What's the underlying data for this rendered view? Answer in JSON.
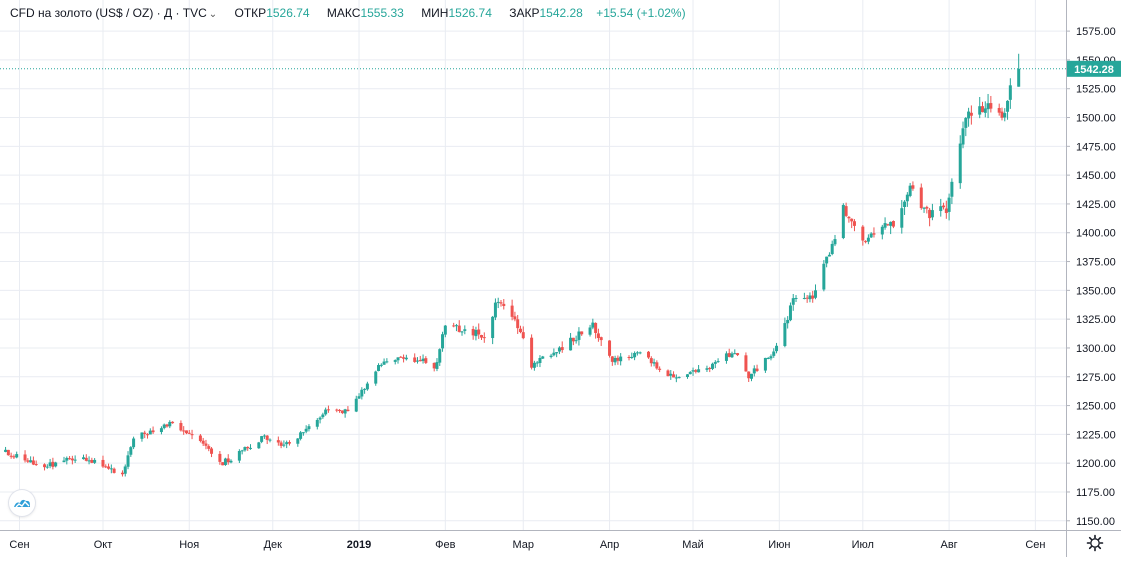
{
  "header": {
    "symbol": "CFD на золото (US$ / OZ) · Д · TVC",
    "open_label": "ОТКР",
    "open": "1526.74",
    "high_label": "МАКС",
    "high": "1555.33",
    "low_label": "МИН",
    "low": "1526.74",
    "close_label": "ЗАКР",
    "close": "1542.28",
    "change": "+15.54 (+1.02%)"
  },
  "colors": {
    "up": "#26a69a",
    "down": "#ef5350",
    "grid": "#e9ecf2",
    "axis": "#b2b5be",
    "last_price": "#26a69a",
    "text": "#131722"
  },
  "chart_data": {
    "type": "candlestick",
    "title": "",
    "xlabel": "",
    "ylabel": "",
    "ylim": [
      1142,
      1602
    ],
    "y_ticks": [
      1150,
      1175,
      1200,
      1225,
      1250,
      1275,
      1300,
      1325,
      1350,
      1375,
      1400,
      1425,
      1450,
      1475,
      1500,
      1525,
      1550,
      1575
    ],
    "y_tick_labels": [
      "1150.00",
      "1175.00",
      "1200.00",
      "1225.00",
      "1250.00",
      "1275.00",
      "1300.00",
      "1325.00",
      "1350.00",
      "1375.00",
      "1400.00",
      "1425.00",
      "1450.00",
      "1475.00",
      "1500.00",
      "1525.00",
      "1550.00",
      "1575.00"
    ],
    "x_ticks": [
      {
        "label": "Сен",
        "date": "2018-09-01",
        "bold": false
      },
      {
        "label": "Окт",
        "date": "2018-10-01",
        "bold": false
      },
      {
        "label": "Ноя",
        "date": "2018-11-01",
        "bold": false
      },
      {
        "label": "Дек",
        "date": "2018-12-01",
        "bold": false
      },
      {
        "label": "2019",
        "date": "2019-01-01",
        "bold": true
      },
      {
        "label": "Фев",
        "date": "2019-02-01",
        "bold": false
      },
      {
        "label": "Мар",
        "date": "2019-03-01",
        "bold": false
      },
      {
        "label": "Апр",
        "date": "2019-04-01",
        "bold": false
      },
      {
        "label": "Май",
        "date": "2019-05-01",
        "bold": false
      },
      {
        "label": "Июн",
        "date": "2019-06-01",
        "bold": false
      },
      {
        "label": "Июл",
        "date": "2019-07-01",
        "bold": false
      },
      {
        "label": "Авг",
        "date": "2019-08-01",
        "bold": false
      },
      {
        "label": "Сен",
        "date": "2019-09-01",
        "bold": false
      }
    ],
    "x_range": [
      "2018-08-25",
      "2019-09-12"
    ],
    "last_price": 1542.28,
    "last_price_label": "1542.28",
    "grid": true,
    "anchors": [
      [
        "2018-08-27",
        1210
      ],
      [
        "2018-09-10",
        1198
      ],
      [
        "2018-09-24",
        1205
      ],
      [
        "2018-10-08",
        1188
      ],
      [
        "2018-10-12",
        1222
      ],
      [
        "2018-10-26",
        1235
      ],
      [
        "2018-11-09",
        1210
      ],
      [
        "2018-11-13",
        1200
      ],
      [
        "2018-11-27",
        1222
      ],
      [
        "2018-12-07",
        1215
      ],
      [
        "2018-12-21",
        1248
      ],
      [
        "2018-12-28",
        1245
      ],
      [
        "2019-01-10",
        1290
      ],
      [
        "2019-01-24",
        1290
      ],
      [
        "2019-01-28",
        1280
      ],
      [
        "2019-02-01",
        1320
      ],
      [
        "2019-02-15",
        1310
      ],
      [
        "2019-02-20",
        1342
      ],
      [
        "2019-02-28",
        1315
      ],
      [
        "2019-03-04",
        1285
      ],
      [
        "2019-03-14",
        1300
      ],
      [
        "2019-03-26",
        1320
      ],
      [
        "2019-04-02",
        1290
      ],
      [
        "2019-04-12",
        1295
      ],
      [
        "2019-04-22",
        1275
      ],
      [
        "2019-05-06",
        1280
      ],
      [
        "2019-05-16",
        1298
      ],
      [
        "2019-05-21",
        1275
      ],
      [
        "2019-05-31",
        1300
      ],
      [
        "2019-06-06",
        1340
      ],
      [
        "2019-06-13",
        1345
      ],
      [
        "2019-06-21",
        1395
      ],
      [
        "2019-06-24",
        1425
      ],
      [
        "2019-07-01",
        1390
      ],
      [
        "2019-07-12",
        1410
      ],
      [
        "2019-07-18",
        1440
      ],
      [
        "2019-07-25",
        1415
      ],
      [
        "2019-07-31",
        1420
      ],
      [
        "2019-08-07",
        1500
      ],
      [
        "2019-08-13",
        1510
      ],
      [
        "2019-08-20",
        1500
      ],
      [
        "2019-08-23",
        1527
      ],
      [
        "2019-08-26",
        1542
      ]
    ],
    "final_candle": {
      "date": "2019-08-26",
      "open": 1526.74,
      "high": 1555.33,
      "low": 1526.74,
      "close": 1542.28
    }
  }
}
